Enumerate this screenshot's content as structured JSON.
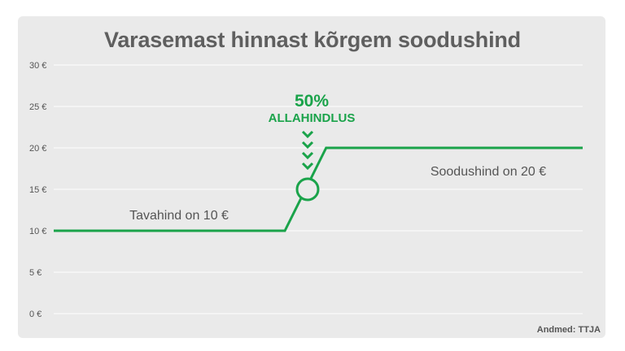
{
  "chart_data": {
    "type": "line",
    "title": "Varasemast hinnast kõrgem soodushind",
    "source": "Andmed: TTJA",
    "y_ticks": [
      "0 €",
      "5 €",
      "10 €",
      "15 €",
      "20 €",
      "25 €",
      "30 €"
    ],
    "ylim": [
      0,
      30
    ],
    "grid": true,
    "series": [
      {
        "color": "#1aa34a",
        "points": [
          {
            "x": 0.0,
            "y": 10
          },
          {
            "x": 0.437,
            "y": 10
          },
          {
            "x": 0.515,
            "y": 20
          },
          {
            "x": 1.0,
            "y": 20
          }
        ]
      }
    ],
    "annotations": {
      "discount_value": "50%",
      "discount_label": "ALLAHINDLUS",
      "regular_price": "Tavahind on 10 €",
      "sale_price": "Soodushind on 20 €",
      "marker_y": 15
    }
  }
}
